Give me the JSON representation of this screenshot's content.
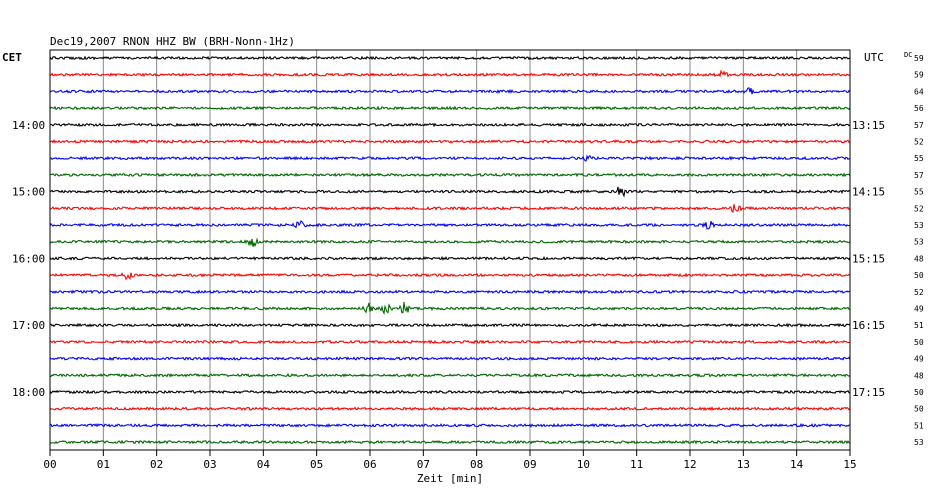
{
  "chart_data": {
    "type": "line",
    "title": "Dec19,2007   RNON HHZ BW (BRH-Nonn-1Hz)",
    "left_label": "CET",
    "right_label": "UTC",
    "dc_label": "DC",
    "xlabel": "Zeit [min]",
    "xlim": [
      0,
      15
    ],
    "x_ticks": [
      "00",
      "01",
      "02",
      "03",
      "04",
      "05",
      "06",
      "07",
      "08",
      "09",
      "10",
      "11",
      "12",
      "13",
      "14",
      "15"
    ],
    "row_colors": [
      "#000000",
      "#ff0000",
      "#0000ff",
      "#006600"
    ],
    "left_time_labels": [
      {
        "row": 4,
        "label": "14:00"
      },
      {
        "row": 8,
        "label": "15:00"
      },
      {
        "row": 12,
        "label": "16:00"
      },
      {
        "row": 16,
        "label": "17:00"
      },
      {
        "row": 20,
        "label": "18:00"
      }
    ],
    "right_time_labels": [
      {
        "row": 4,
        "label": "13:15"
      },
      {
        "row": 8,
        "label": "14:15"
      },
      {
        "row": 12,
        "label": "15:15"
      },
      {
        "row": 16,
        "label": "16:15"
      },
      {
        "row": 20,
        "label": "17:15"
      }
    ],
    "dc_values": [
      "59",
      "59",
      "64",
      "56",
      "57",
      "52",
      "55",
      "57",
      "55",
      "52",
      "53",
      "53",
      "48",
      "50",
      "52",
      "49",
      "51",
      "50",
      "49",
      "48",
      "50",
      "50",
      "51",
      "53"
    ],
    "events": [
      {
        "row": 1,
        "minute": 12.6,
        "amplitude": 4
      },
      {
        "row": 2,
        "minute": 13.1,
        "amplitude": 3
      },
      {
        "row": 6,
        "minute": 10.1,
        "amplitude": 3
      },
      {
        "row": 8,
        "minute": 10.7,
        "amplitude": 6
      },
      {
        "row": 9,
        "minute": 12.85,
        "amplitude": 5
      },
      {
        "row": 10,
        "minute": 4.7,
        "amplitude": 5
      },
      {
        "row": 10,
        "minute": 12.35,
        "amplitude": 4
      },
      {
        "row": 11,
        "minute": 3.8,
        "amplitude": 6
      },
      {
        "row": 13,
        "minute": 1.45,
        "amplitude": 5
      },
      {
        "row": 15,
        "minute": 5.95,
        "amplitude": 6
      },
      {
        "row": 15,
        "minute": 6.3,
        "amplitude": 5
      },
      {
        "row": 15,
        "minute": 6.65,
        "amplitude": 6
      }
    ]
  }
}
